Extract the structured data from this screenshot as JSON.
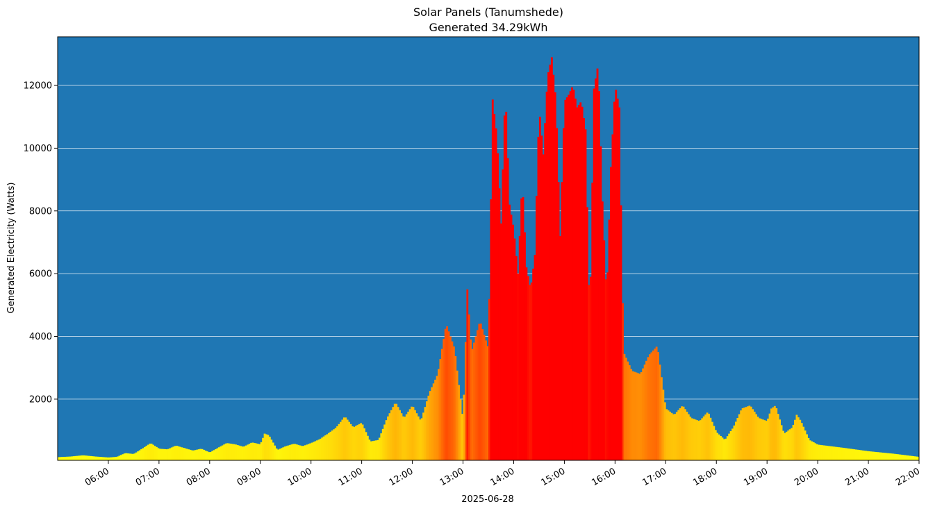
{
  "chart_data": {
    "type": "bar",
    "title": "Solar Panels (Tanumshede)",
    "subtitle": "Generated 34.29kWh",
    "xlabel": "2025-06-28",
    "ylabel": "Generated Electricity (Watts)",
    "x_unit": "time of day (2025-06-28)",
    "xlim": [
      "05:00",
      "22:00"
    ],
    "ylim": [
      50,
      13550
    ],
    "x_ticks": [
      "06:00",
      "07:00",
      "08:00",
      "09:00",
      "10:00",
      "11:00",
      "12:00",
      "13:00",
      "14:00",
      "15:00",
      "16:00",
      "17:00",
      "18:00",
      "19:00",
      "20:00",
      "21:00",
      "22:00"
    ],
    "y_ticks": [
      2000,
      4000,
      6000,
      8000,
      10000,
      12000
    ],
    "y_tick_labels": [
      "2000",
      "4000",
      "6000",
      "8000",
      "10000",
      "12000"
    ],
    "grid": "horizontal",
    "background_color": "#1f77b4",
    "colormap": [
      "#ffff00",
      "#ff0000"
    ],
    "series": [
      {
        "points": [
          [
            "05:00",
            150
          ],
          [
            "05:15",
            170
          ],
          [
            "05:30",
            210
          ],
          [
            "05:45",
            170
          ],
          [
            "06:00",
            140
          ],
          [
            "06:10",
            160
          ],
          [
            "06:20",
            280
          ],
          [
            "06:30",
            250
          ],
          [
            "06:40",
            420
          ],
          [
            "06:50",
            600
          ],
          [
            "07:00",
            420
          ],
          [
            "07:10",
            400
          ],
          [
            "07:20",
            520
          ],
          [
            "07:30",
            440
          ],
          [
            "07:40",
            360
          ],
          [
            "07:50",
            420
          ],
          [
            "08:00",
            300
          ],
          [
            "08:10",
            450
          ],
          [
            "08:20",
            600
          ],
          [
            "08:30",
            560
          ],
          [
            "08:40",
            480
          ],
          [
            "08:50",
            620
          ],
          [
            "09:00",
            560
          ],
          [
            "09:05",
            900
          ],
          [
            "09:10",
            850
          ],
          [
            "09:20",
            380
          ],
          [
            "09:30",
            500
          ],
          [
            "09:40",
            580
          ],
          [
            "09:50",
            500
          ],
          [
            "10:00",
            600
          ],
          [
            "10:10",
            720
          ],
          [
            "10:20",
            900
          ],
          [
            "10:30",
            1100
          ],
          [
            "10:40",
            1450
          ],
          [
            "10:50",
            1100
          ],
          [
            "11:00",
            1250
          ],
          [
            "11:10",
            650
          ],
          [
            "11:20",
            700
          ],
          [
            "11:30",
            1400
          ],
          [
            "11:40",
            1900
          ],
          [
            "11:50",
            1400
          ],
          [
            "12:00",
            1800
          ],
          [
            "12:10",
            1300
          ],
          [
            "12:20",
            2200
          ],
          [
            "12:30",
            2800
          ],
          [
            "12:40",
            4400
          ],
          [
            "12:50",
            3600
          ],
          [
            "13:00",
            1300
          ],
          [
            "13:05",
            5500
          ],
          [
            "13:10",
            3500
          ],
          [
            "13:20",
            4500
          ],
          [
            "13:30",
            3600
          ],
          [
            "13:35",
            11550
          ],
          [
            "13:40",
            10400
          ],
          [
            "13:45",
            7600
          ],
          [
            "13:50",
            11900
          ],
          [
            "13:55",
            8200
          ],
          [
            "14:00",
            7400
          ],
          [
            "14:05",
            6000
          ],
          [
            "14:10",
            9000
          ],
          [
            "14:15",
            6200
          ],
          [
            "14:20",
            5500
          ],
          [
            "14:25",
            6600
          ],
          [
            "14:30",
            11300
          ],
          [
            "14:35",
            9800
          ],
          [
            "14:40",
            12300
          ],
          [
            "14:45",
            12900
          ],
          [
            "14:50",
            11500
          ],
          [
            "14:55",
            7200
          ],
          [
            "15:00",
            11500
          ],
          [
            "15:05",
            11700
          ],
          [
            "15:10",
            12000
          ],
          [
            "15:15",
            11300
          ],
          [
            "15:20",
            11500
          ],
          [
            "15:25",
            10600
          ],
          [
            "15:30",
            4400
          ],
          [
            "15:35",
            11900
          ],
          [
            "15:40",
            12700
          ],
          [
            "15:45",
            8300
          ],
          [
            "15:50",
            5200
          ],
          [
            "15:55",
            9400
          ],
          [
            "16:00",
            12000
          ],
          [
            "16:05",
            11300
          ],
          [
            "16:10",
            3500
          ],
          [
            "16:20",
            2900
          ],
          [
            "16:30",
            2800
          ],
          [
            "16:40",
            3400
          ],
          [
            "16:50",
            3700
          ],
          [
            "17:00",
            1700
          ],
          [
            "17:10",
            1500
          ],
          [
            "17:20",
            1800
          ],
          [
            "17:30",
            1400
          ],
          [
            "17:40",
            1300
          ],
          [
            "17:50",
            1600
          ],
          [
            "18:00",
            950
          ],
          [
            "18:10",
            700
          ],
          [
            "18:20",
            1100
          ],
          [
            "18:30",
            1700
          ],
          [
            "18:40",
            1800
          ],
          [
            "18:50",
            1400
          ],
          [
            "19:00",
            1300
          ],
          [
            "19:05",
            1700
          ],
          [
            "19:10",
            1800
          ],
          [
            "19:20",
            900
          ],
          [
            "19:30",
            1100
          ],
          [
            "19:35",
            1500
          ],
          [
            "19:40",
            1300
          ],
          [
            "19:50",
            700
          ],
          [
            "20:00",
            550
          ],
          [
            "20:30",
            450
          ],
          [
            "21:00",
            340
          ],
          [
            "21:30",
            260
          ],
          [
            "22:00",
            160
          ]
        ]
      }
    ]
  }
}
